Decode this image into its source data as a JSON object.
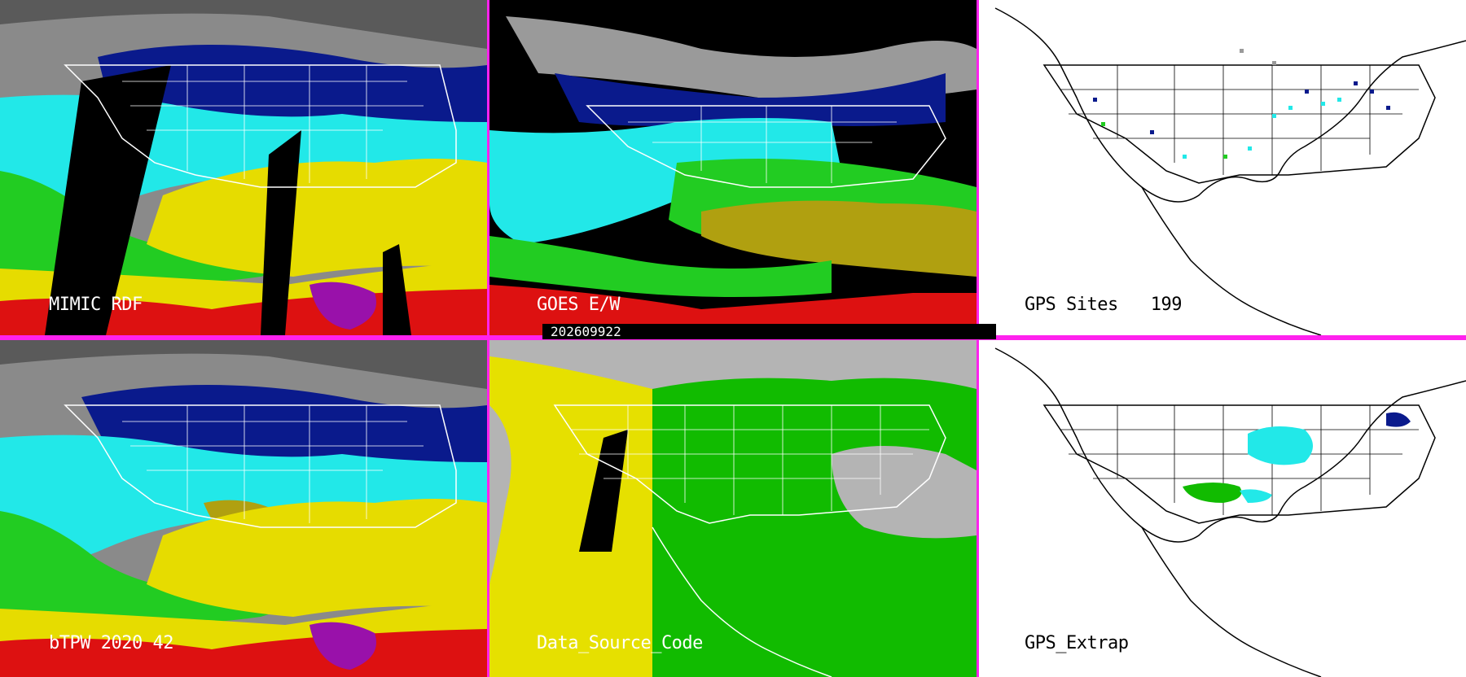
{
  "panels": {
    "mimic": {
      "label": "MIMIC RDF"
    },
    "goes": {
      "label": "GOES E/W"
    },
    "gps_sites": {
      "label": "GPS Sites",
      "count": "199"
    },
    "btpw": {
      "label": "bTPW 2020 42"
    },
    "dsc": {
      "label": "Data_Source_Code"
    },
    "gps_extrap": {
      "label": "GPS_Extrap"
    }
  },
  "timestamp": "202609922",
  "colors": {
    "divider": "#ff22ee",
    "ocean_gray": "#8c8c8c",
    "navy": "#0a1a8c",
    "cyan": "#22e8e8",
    "green": "#22cc22",
    "yellow": "#e6dc00",
    "red": "#dd1111",
    "olive": "#b0a010",
    "dsc_yellow": "#e6e000",
    "dsc_green": "#11bb00",
    "dsc_gray": "#b4b4b4"
  }
}
